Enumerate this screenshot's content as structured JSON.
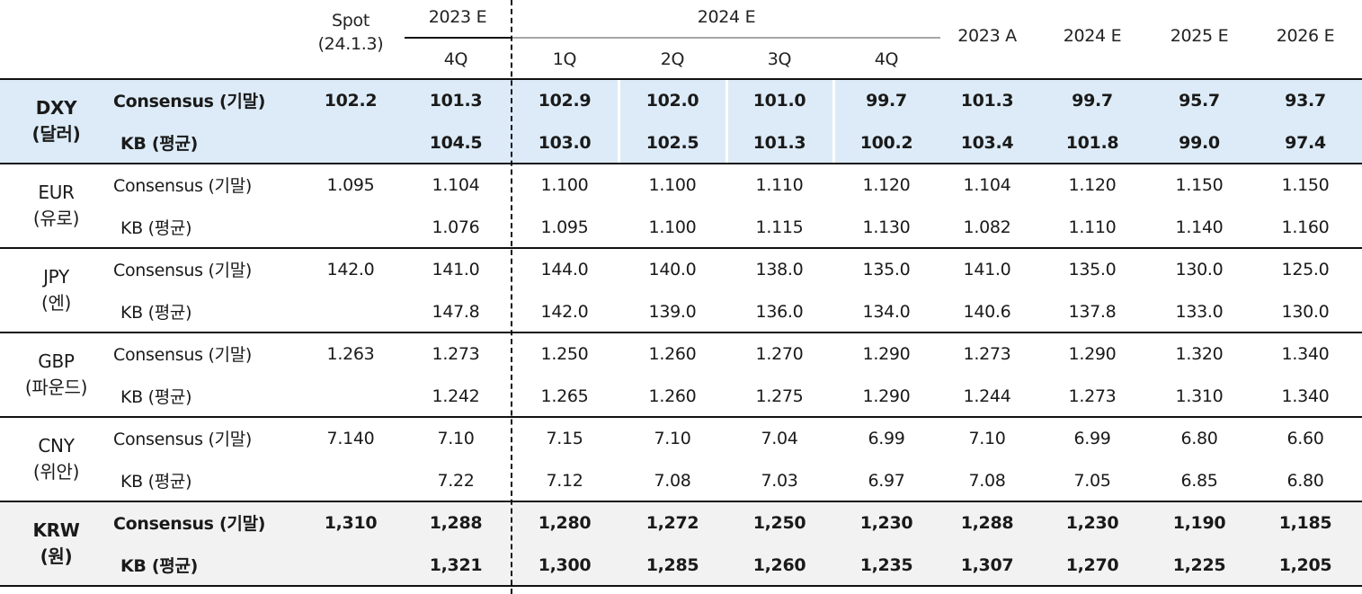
{
  "header": {
    "spot_line1": "Spot",
    "spot_line2": "(24.1.3)",
    "group_2023e": "2023 E",
    "group_2024e": "2024 E",
    "quarters": [
      "4Q",
      "1Q",
      "2Q",
      "3Q",
      "4Q"
    ],
    "annual": [
      "2023 A",
      "2024 E",
      "2025 E",
      "2026 E"
    ]
  },
  "groups": [
    {
      "code": "DXY",
      "name": "(달러)",
      "rows": [
        {
          "label": "Consensus (기말)",
          "values": [
            "102.2",
            "101.3",
            "102.9",
            "102.0",
            "101.0",
            "99.7",
            "101.3",
            "99.7",
            "95.7",
            "93.7"
          ]
        },
        {
          "label": "KB (평균)",
          "values": [
            "",
            "104.5",
            "103.0",
            "102.5",
            "101.3",
            "100.2",
            "103.4",
            "101.8",
            "99.0",
            "97.4"
          ]
        }
      ]
    },
    {
      "code": "EUR",
      "name": "(유로)",
      "rows": [
        {
          "label": "Consensus (기말)",
          "values": [
            "1.095",
            "1.104",
            "1.100",
            "1.100",
            "1.110",
            "1.120",
            "1.104",
            "1.120",
            "1.150",
            "1.150"
          ]
        },
        {
          "label": "KB (평균)",
          "values": [
            "",
            "1.076",
            "1.095",
            "1.100",
            "1.115",
            "1.130",
            "1.082",
            "1.110",
            "1.140",
            "1.160"
          ]
        }
      ]
    },
    {
      "code": "JPY",
      "name": "(엔)",
      "rows": [
        {
          "label": "Consensus (기말)",
          "values": [
            "142.0",
            "141.0",
            "144.0",
            "140.0",
            "138.0",
            "135.0",
            "141.0",
            "135.0",
            "130.0",
            "125.0"
          ]
        },
        {
          "label": "KB (평균)",
          "values": [
            "",
            "147.8",
            "142.0",
            "139.0",
            "136.0",
            "134.0",
            "140.6",
            "137.8",
            "133.0",
            "130.0"
          ]
        }
      ]
    },
    {
      "code": "GBP",
      "name": "(파운드)",
      "rows": [
        {
          "label": "Consensus (기말)",
          "values": [
            "1.263",
            "1.273",
            "1.250",
            "1.260",
            "1.270",
            "1.290",
            "1.273",
            "1.290",
            "1.320",
            "1.340"
          ]
        },
        {
          "label": "KB (평균)",
          "values": [
            "",
            "1.242",
            "1.265",
            "1.260",
            "1.275",
            "1.290",
            "1.244",
            "1.273",
            "1.310",
            "1.340"
          ]
        }
      ]
    },
    {
      "code": "CNY",
      "name": "(위안)",
      "rows": [
        {
          "label": "Consensus (기말)",
          "values": [
            "7.140",
            "7.10",
            "7.15",
            "7.10",
            "7.04",
            "6.99",
            "7.10",
            "6.99",
            "6.80",
            "6.60"
          ]
        },
        {
          "label": "KB (평균)",
          "values": [
            "",
            "7.22",
            "7.12",
            "7.08",
            "7.03",
            "6.97",
            "7.08",
            "7.05",
            "6.85",
            "6.80"
          ]
        }
      ]
    },
    {
      "code": "KRW",
      "name": "(원)",
      "rows": [
        {
          "label": "Consensus (기말)",
          "values": [
            "1,310",
            "1,288",
            "1,280",
            "1,272",
            "1,250",
            "1,230",
            "1,288",
            "1,230",
            "1,190",
            "1,185"
          ]
        },
        {
          "label": "KB (평균)",
          "values": [
            "",
            "1,321",
            "1,300",
            "1,285",
            "1,260",
            "1,235",
            "1,307",
            "1,270",
            "1,225",
            "1,205"
          ]
        }
      ]
    }
  ],
  "colors": {
    "dxy_band": "#dcebf7",
    "krw_band": "#f2f2f2",
    "rule": "#111111",
    "mid_rule": "#a6a6a6"
  }
}
